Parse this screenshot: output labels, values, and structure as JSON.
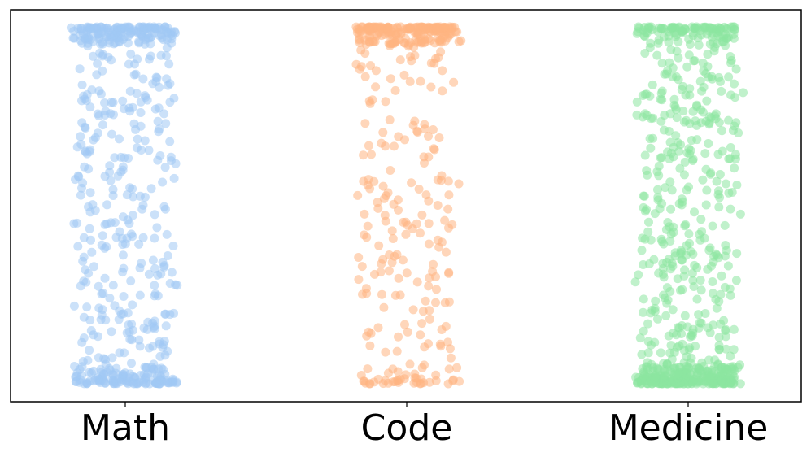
{
  "chart_data": {
    "type": "scatter",
    "style": "strip (jittered)",
    "categories": [
      "Math",
      "Code",
      "Medicine"
    ],
    "grid": false,
    "ylim": [
      0,
      1
    ],
    "yaxis_ticks_visible": false,
    "marker": {
      "shape": "circle",
      "alpha": 0.55
    },
    "series": [
      {
        "category": "Math",
        "color": "#a1c9f4",
        "y_density_profile": [
          {
            "range": [
              0.0,
              0.05
            ],
            "weight": 0.24
          },
          {
            "range": [
              0.05,
              0.95
            ],
            "weight": 0.52
          },
          {
            "range": [
              0.95,
              1.0
            ],
            "weight": 0.24
          }
        ],
        "approx_points": 560
      },
      {
        "category": "Code",
        "color": "#ffb482",
        "y_density_profile": [
          {
            "range": [
              0.0,
              0.05
            ],
            "weight": 0.1
          },
          {
            "range": [
              0.05,
              0.95
            ],
            "weight": 0.45
          },
          {
            "range": [
              0.95,
              1.0
            ],
            "weight": 0.45
          }
        ],
        "approx_points": 400
      },
      {
        "category": "Medicine",
        "color": "#8de5a1",
        "y_density_profile": [
          {
            "range": [
              0.0,
              0.05
            ],
            "weight": 0.35
          },
          {
            "range": [
              0.05,
              0.95
            ],
            "weight": 0.5
          },
          {
            "range": [
              0.95,
              1.0
            ],
            "weight": 0.15
          }
        ],
        "approx_points": 720
      }
    ]
  }
}
